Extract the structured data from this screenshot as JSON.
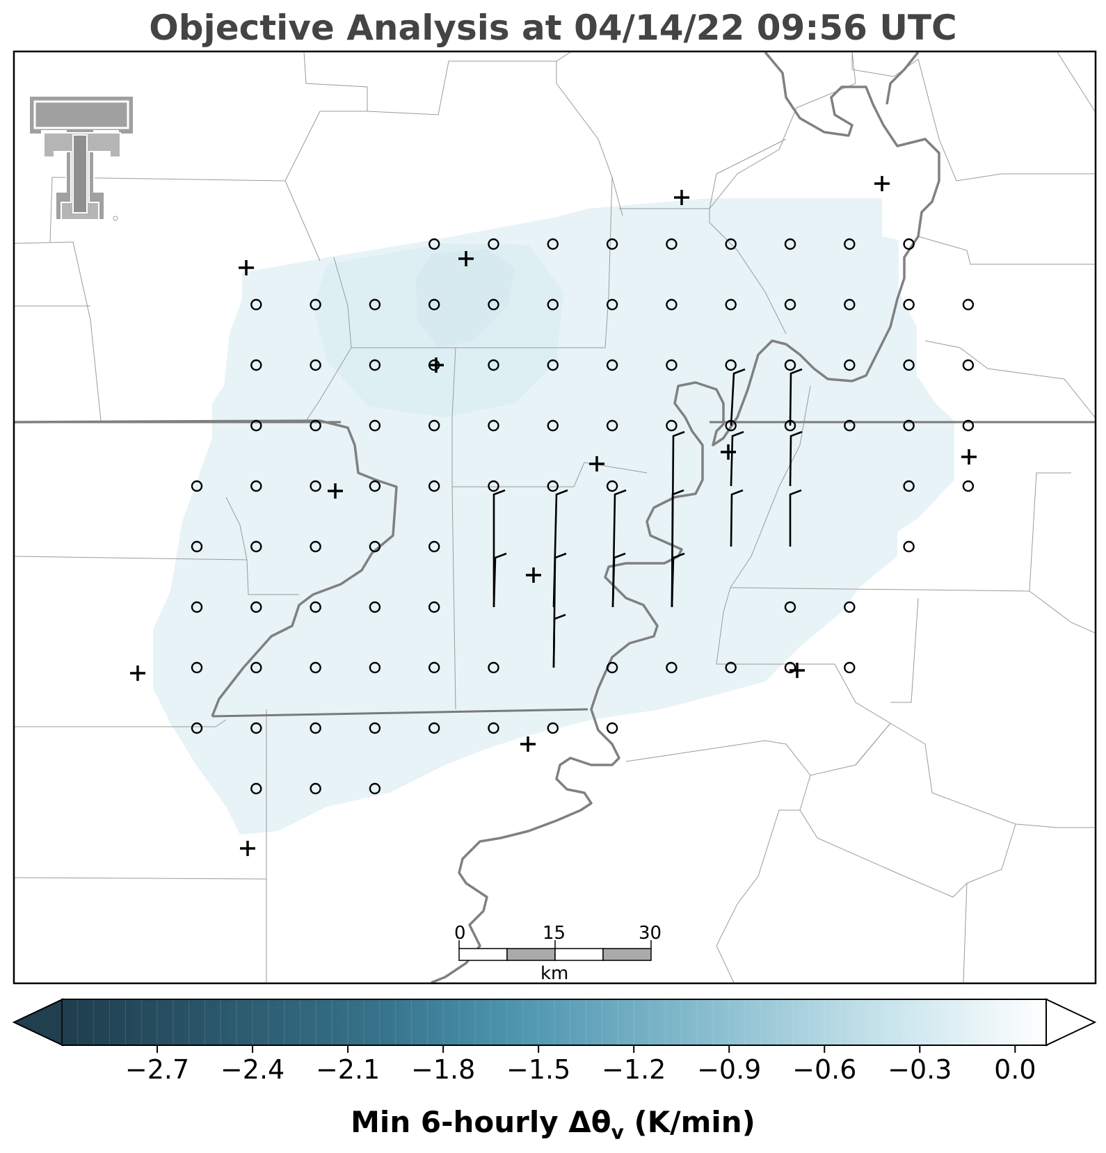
{
  "title": "Objective Analysis at 04/14/22 09:56 UTC",
  "colorbar": {
    "label_main": "Min 6-hourly Δθ",
    "label_sub": "v",
    "label_units": " (K/min)",
    "ticks": [
      "−2.7",
      "−2.4",
      "−2.1",
      "−1.8",
      "−1.5",
      "−1.2",
      "−0.9",
      "−0.6",
      "−0.3",
      "0.0"
    ],
    "tick_values": [
      -2.7,
      -2.4,
      -2.1,
      -1.8,
      -1.5,
      -1.2,
      -0.9,
      -0.6,
      -0.3,
      0.0
    ],
    "range": [
      -3.0,
      0.1
    ],
    "extend": "both",
    "colormap_dark": "#1f3d4d",
    "colormap_mid": "#4a93ad",
    "colormap_light": "#ffffff"
  },
  "map": {
    "analysis_fill": "#e6f3f7",
    "analysis_min_fill": "#d6ecf2",
    "state_border_color": "#7a7a7a",
    "county_line_color": "#9a9a9a",
    "river_color": "#808080",
    "logo_icon": "texas-tech-double-t-logo",
    "scale_bar": {
      "labels": [
        "0",
        "15",
        "30"
      ],
      "unit": "km"
    }
  }
}
